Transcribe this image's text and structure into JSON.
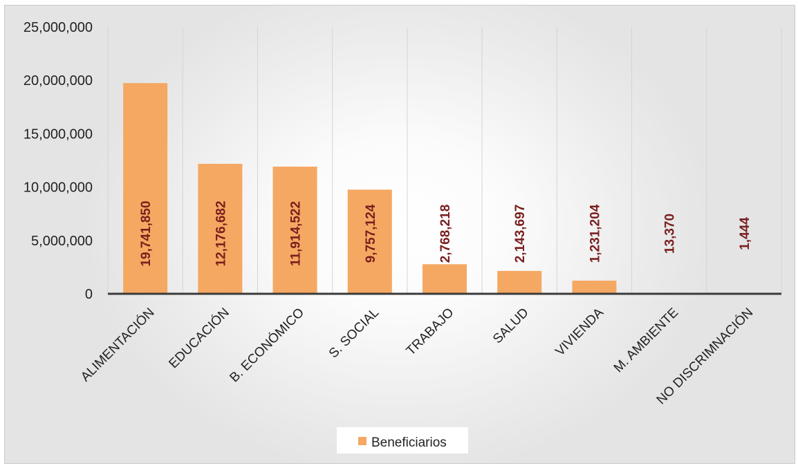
{
  "chart_data": {
    "type": "bar",
    "categories": [
      "ALIMENTACIÓN",
      "EDUCACIÓN",
      "B. ECONÓMICO",
      "S. SOCIAL",
      "TRABAJO",
      "SALUD",
      "VIVIENDA",
      "M. AMBIENTE",
      "NO DISCRIMNACIÓN"
    ],
    "series": [
      {
        "name": "Beneficiarios",
        "values": [
          19741850,
          12176682,
          11914522,
          9757124,
          2768218,
          2143697,
          1231204,
          13370,
          1444
        ],
        "labels": [
          "19,741,850",
          "12,176,682",
          "11,914,522",
          "9,757,124",
          "2,768,218",
          "2,143,697",
          "1,231,204",
          "13,370",
          "1,444"
        ],
        "color": "#f5a862"
      }
    ],
    "yticks": [
      "0",
      "5,000,000",
      "10,000,000",
      "15,000,000",
      "20,000,000",
      "25,000,000"
    ],
    "ylim": [
      0,
      25000000
    ],
    "title": "",
    "xlabel": "",
    "ylabel": "",
    "grid": "vertical",
    "legend": "bottom",
    "colors": {
      "bar": "#f5a862",
      "data_label": "#7a1e1e",
      "axis": "#3a3a3a",
      "grid": "#d4d4d4"
    }
  }
}
